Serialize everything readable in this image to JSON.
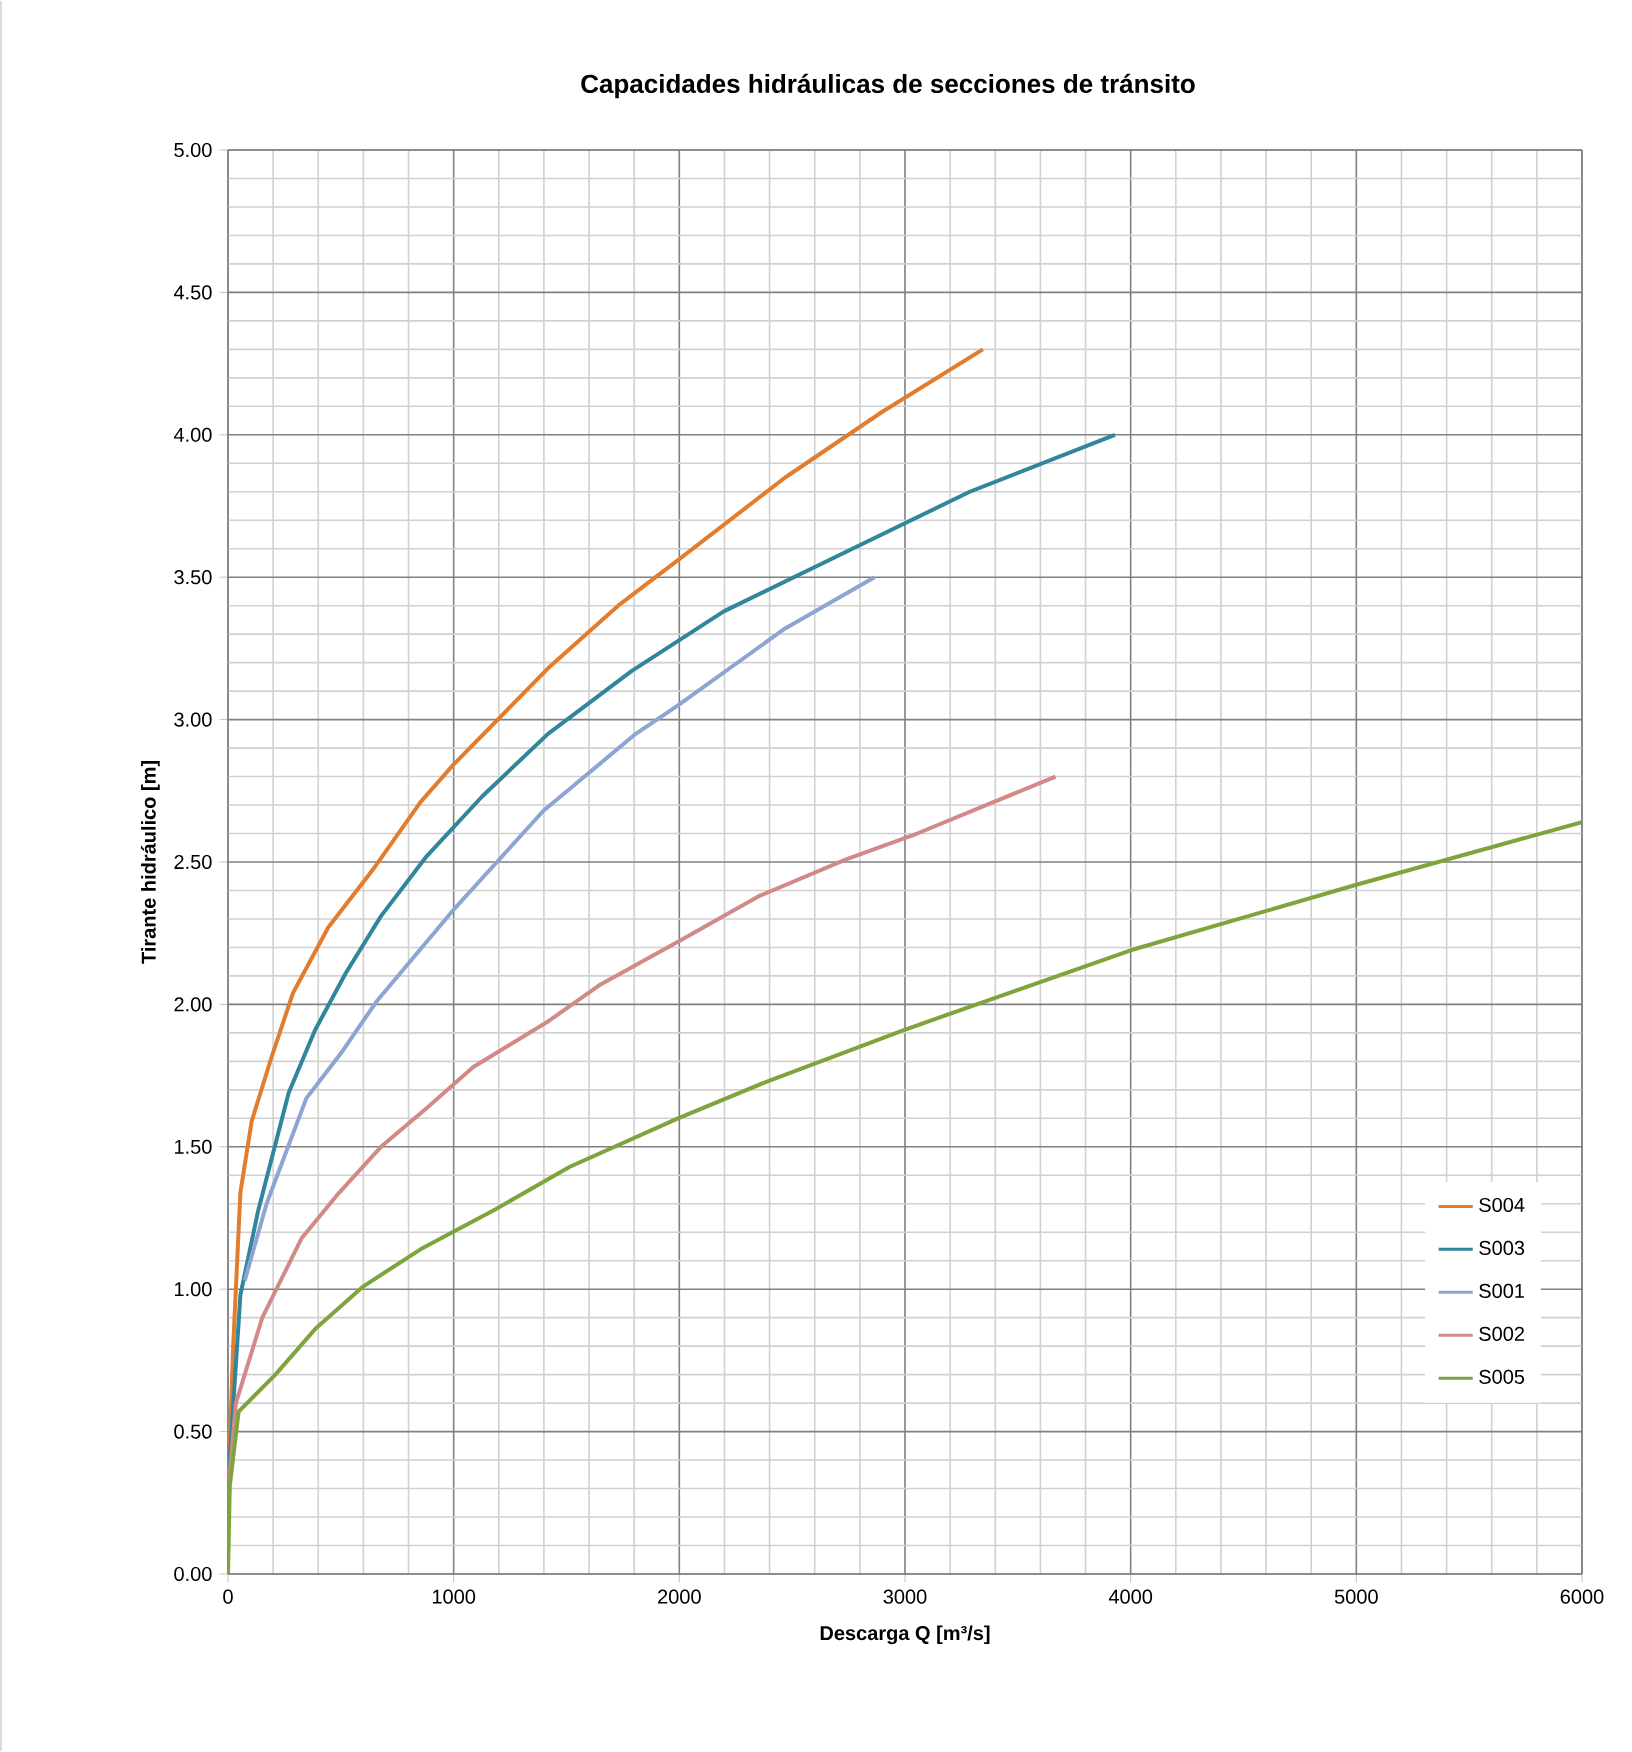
{
  "chart_data": {
    "type": "line",
    "title": "Capacidades hidráulicas de secciones de tránsito",
    "xlabel": "Descarga  Q [m³/s]",
    "ylabel": "Tirante hidráulico  [m]",
    "xlim": [
      0,
      6000
    ],
    "xticks": [
      0,
      1000,
      2000,
      3000,
      4000,
      5000,
      6000
    ],
    "ylim": [
      0,
      5
    ],
    "yticks": [
      {
        "value": 0,
        "label": "0.00"
      },
      {
        "value": 0.5,
        "label": "0.50"
      },
      {
        "value": 1,
        "label": "1.00"
      },
      {
        "value": 1.5,
        "label": "1.50"
      },
      {
        "value": 2,
        "label": "2.00"
      },
      {
        "value": 2.5,
        "label": "2.50"
      },
      {
        "value": 3,
        "label": "3.00"
      },
      {
        "value": 3.5,
        "label": "3.50"
      },
      {
        "value": 4,
        "label": "4.00"
      },
      {
        "value": 4.5,
        "label": "4.50"
      },
      {
        "value": 5,
        "label": "5.00"
      }
    ],
    "grid": true,
    "legend": "right",
    "series": [
      {
        "name": "S004",
        "color": "#e27d2e",
        "x": [
          0,
          10,
          23,
          55,
          105,
          191,
          288,
          444,
          639,
          853,
          997,
          1418,
          1729,
          1994,
          2469,
          2898,
          3345
        ],
        "values": [
          0.2,
          0.5,
          0.8,
          1.34,
          1.59,
          1.81,
          2.04,
          2.27,
          2.47,
          2.71,
          2.84,
          3.18,
          3.4,
          3.56,
          3.85,
          4.08,
          4.3
        ]
      },
      {
        "name": "S003",
        "color": "#31859c",
        "x": [
          0,
          55,
          132,
          269,
          386,
          522,
          678,
          880,
          1126,
          1418,
          1788,
          2197,
          2742,
          3287,
          3930
        ],
        "values": [
          0.31,
          0.98,
          1.27,
          1.69,
          1.91,
          2.11,
          2.31,
          2.52,
          2.73,
          2.95,
          3.17,
          3.38,
          3.59,
          3.8,
          4.0
        ]
      },
      {
        "name": "S001",
        "color": "#8ea5d4",
        "x": [
          74,
          171,
          347,
          502,
          658,
          997,
          1398,
          1807,
          1994,
          2469,
          2865
        ],
        "values": [
          1.03,
          1.3,
          1.67,
          1.83,
          2.01,
          2.33,
          2.68,
          2.95,
          3.05,
          3.32,
          3.5
        ]
      },
      {
        "name": "S002",
        "color": "#d28a88",
        "x": [
          0,
          35,
          152,
          327,
          483,
          678,
          872,
          1087,
          1418,
          1651,
          1994,
          2352,
          2742,
          3054,
          3667
        ],
        "values": [
          0.28,
          0.6,
          0.9,
          1.18,
          1.33,
          1.5,
          1.63,
          1.78,
          1.94,
          2.07,
          2.22,
          2.38,
          2.51,
          2.6,
          2.8
        ]
      },
      {
        "name": "S005",
        "color": "#7ea43c",
        "x": [
          0,
          8,
          47,
          210,
          386,
          600,
          853,
          1184,
          1515,
          1994,
          2391,
          2995,
          4000,
          5000,
          6000
        ],
        "values": [
          0.0,
          0.31,
          0.57,
          0.7,
          0.86,
          1.01,
          1.14,
          1.28,
          1.43,
          1.6,
          1.73,
          1.91,
          2.19,
          2.42,
          2.64
        ]
      }
    ]
  }
}
